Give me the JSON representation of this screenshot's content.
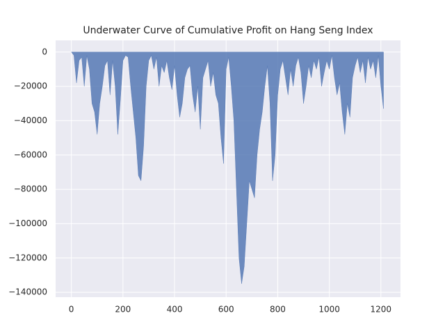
{
  "chart_data": {
    "type": "area",
    "title": "Underwater Curve of Cumulative Profit on Hang Seng Index",
    "color": "#4c72b0",
    "grid": true,
    "xlim": [
      -61,
      1276
    ],
    "ylim": [
      -142800,
      6800
    ],
    "xticks": [
      0,
      200,
      400,
      600,
      800,
      1000,
      1200
    ],
    "yticks": [
      0,
      {
        "value": -20000,
        "label": "−20000"
      },
      {
        "value": -40000,
        "label": "−40000"
      },
      {
        "value": -60000,
        "label": "−60000"
      },
      {
        "value": -80000,
        "label": "−80000"
      },
      {
        "value": -100000,
        "label": "−100000"
      },
      {
        "value": -120000,
        "label": "−120000"
      },
      {
        "value": -140000,
        "label": "−140000"
      }
    ],
    "x": [
      0,
      10,
      20,
      30,
      40,
      50,
      60,
      70,
      80,
      90,
      100,
      110,
      120,
      130,
      140,
      150,
      160,
      170,
      180,
      190,
      200,
      210,
      220,
      230,
      240,
      250,
      260,
      270,
      280,
      290,
      300,
      310,
      320,
      330,
      340,
      350,
      360,
      370,
      380,
      390,
      400,
      410,
      420,
      430,
      440,
      450,
      460,
      470,
      480,
      490,
      500,
      510,
      520,
      530,
      540,
      550,
      560,
      570,
      580,
      590,
      600,
      610,
      620,
      630,
      640,
      650,
      660,
      670,
      680,
      690,
      700,
      710,
      720,
      730,
      740,
      750,
      760,
      770,
      780,
      790,
      800,
      810,
      820,
      830,
      840,
      850,
      860,
      870,
      880,
      890,
      900,
      910,
      920,
      930,
      940,
      950,
      960,
      970,
      980,
      990,
      1000,
      1010,
      1020,
      1030,
      1040,
      1050,
      1060,
      1070,
      1080,
      1090,
      1100,
      1110,
      1120,
      1130,
      1140,
      1150,
      1160,
      1170,
      1180,
      1190,
      1200,
      1210
    ],
    "values": [
      0,
      -2000,
      -18000,
      -5000,
      -3000,
      -20000,
      -2000,
      -10000,
      -30000,
      -35000,
      -48000,
      -30000,
      -20000,
      -8000,
      -5000,
      -25000,
      -5000,
      -20000,
      -48000,
      -28000,
      -5000,
      -2000,
      -3000,
      -20000,
      -35000,
      -50000,
      -72000,
      -75000,
      -55000,
      -20000,
      -5000,
      -2000,
      -10000,
      -3000,
      -20000,
      -8000,
      -12000,
      -5000,
      -15000,
      -22000,
      -8000,
      -25000,
      -38000,
      -30000,
      -15000,
      -10000,
      -8000,
      -25000,
      -35000,
      -20000,
      -45000,
      -15000,
      -10000,
      -5000,
      -20000,
      -12000,
      -25000,
      -30000,
      -50000,
      -65000,
      -10000,
      -3000,
      -20000,
      -40000,
      -80000,
      -120000,
      -135000,
      -125000,
      -100000,
      -75000,
      -80000,
      -85000,
      -60000,
      -45000,
      -35000,
      -20000,
      -8000,
      -30000,
      -75000,
      -60000,
      -25000,
      -10000,
      -5000,
      -15000,
      -25000,
      -10000,
      -20000,
      -8000,
      -3000,
      -12000,
      -30000,
      -20000,
      -8000,
      -15000,
      -5000,
      -10000,
      -3000,
      -20000,
      -12000,
      -5000,
      -10000,
      -2000,
      -15000,
      -25000,
      -18000,
      -35000,
      -48000,
      -30000,
      -38000,
      -15000,
      -8000,
      -3000,
      -12000,
      -5000,
      -18000,
      -3000,
      -10000,
      -5000,
      -15000,
      -2000,
      -20000,
      -33000
    ]
  }
}
